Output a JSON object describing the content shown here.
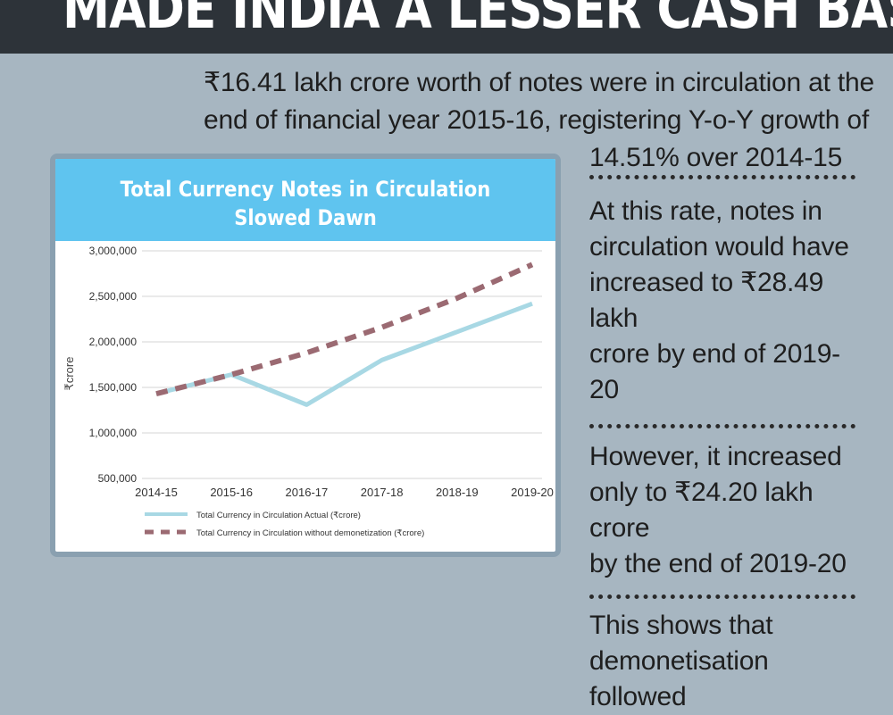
{
  "banner": {
    "title": "MADE INDIA A LESSER CASH BASED ECONOMY?"
  },
  "intro": {
    "line1": "₹16.41 lakh crore worth of notes were in circulation at the",
    "line2": "end of financial year 2015-16, registering Y-o-Y growth of",
    "line3": "14.51% over 2014-15"
  },
  "right_column": {
    "para1": [
      "At this rate, notes in",
      "circulation would have",
      "increased to ₹28.49 lakh",
      "crore by end of 2019-20"
    ],
    "para2": [
      "However, it increased",
      "only to ₹24.20 lakh crore",
      "by the end of 2019-20"
    ],
    "para3": [
      "This shows that",
      "demonetisation followed"
    ]
  },
  "colors": {
    "header": "#5fc4ef",
    "actual_line": "#a8d8e4",
    "projected_line": "#9b6a72",
    "background": "#a7b6c1",
    "banner": "#2d3339"
  },
  "chart_data": {
    "type": "line",
    "title": "Total Currency Notes in Circulation Slowed Dawn",
    "title_lines": [
      "Total Currency Notes in Circulation",
      "Slowed Dawn"
    ],
    "xlabel": "",
    "ylabel": "₹crore",
    "categories": [
      "2014-15",
      "2015-16",
      "2016-17",
      "2017-18",
      "2018-19",
      "2019-20"
    ],
    "yticks": [
      "3,000,000",
      "2,500,000",
      "2,000,000",
      "1,500,000",
      "1,000,000",
      "500,000"
    ],
    "ytick_values": [
      3000000,
      2500000,
      2000000,
      1500000,
      1000000,
      500000
    ],
    "ylim": [
      500000,
      3000000
    ],
    "grid": true,
    "legend_position": "bottom",
    "series": [
      {
        "name": "Total Currency in Circulation Actual (₹crore)",
        "values": [
          1430000,
          1641000,
          1310000,
          1800000,
          2110000,
          2420000
        ],
        "style": "solid"
      },
      {
        "name": "Total Currency in Circulation without demonetization (₹crore)",
        "values": [
          1430000,
          1641000,
          1880000,
          2160000,
          2480000,
          2849000
        ],
        "style": "dashed"
      }
    ]
  }
}
